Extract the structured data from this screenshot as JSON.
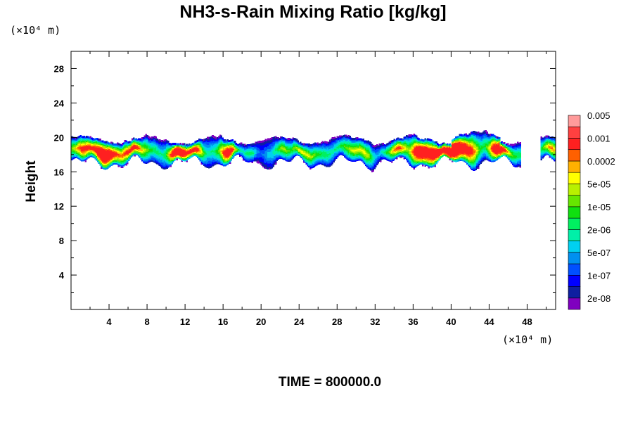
{
  "chart_data": {
    "type": "heatmap",
    "title": "NH3-s-Rain Mixing Ratio [kg/kg]",
    "ylabel": "Height",
    "xlabel": "",
    "x_unit": "(×10⁴ m)",
    "y_unit": "(×10⁴ m)",
    "xlim": [
      0,
      51
    ],
    "ylim": [
      0,
      30
    ],
    "x_ticks": [
      4,
      8,
      12,
      16,
      20,
      24,
      28,
      32,
      36,
      40,
      44,
      48
    ],
    "x_tick_labels": [
      "4",
      "8",
      "12",
      "16",
      "20",
      "24",
      "28",
      "32",
      "36",
      "40",
      "44",
      "48"
    ],
    "y_ticks": [
      4,
      8,
      12,
      16,
      20,
      24,
      28
    ],
    "y_tick_labels": [
      "4",
      "8",
      "12",
      "16",
      "20",
      "24",
      "28"
    ],
    "colorbar": {
      "colors": [
        "#7f00bf",
        "#0f1fa0",
        "#0000ff",
        "#0050ff",
        "#0090f0",
        "#00d0f0",
        "#00f0a8",
        "#00f060",
        "#10e010",
        "#66e600",
        "#b8f000",
        "#ffff00",
        "#ffb000",
        "#ff6000",
        "#ff2020",
        "#ff4040",
        "#ff9a9a"
      ],
      "labels": [
        "2e-08",
        "1e-07",
        "5e-07",
        "2e-06",
        "1e-05",
        "5e-05",
        "0.0002",
        "0.001",
        "0.005"
      ]
    },
    "cloud_band": {
      "y_bottom_range": [
        16.5,
        17.5
      ],
      "y_top_range": [
        19.0,
        20.5
      ],
      "x_extent": [
        [
          0,
          47
        ],
        [
          49.5,
          51
        ]
      ],
      "max_level": "1e-03 (orange-red) near x≈38-42 and x≈45"
    },
    "time_label": "TIME = 800000.0"
  }
}
